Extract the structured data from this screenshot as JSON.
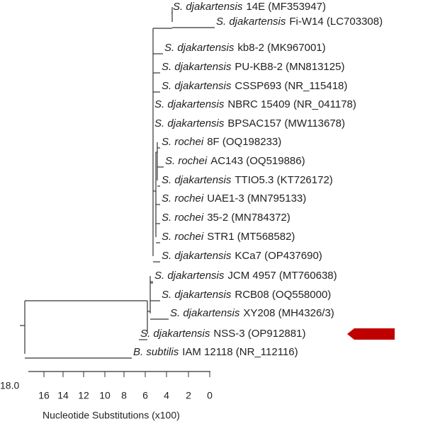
{
  "tree": {
    "leaves": [
      {
        "species": "S. djakartensis",
        "label": "14E (MF353947)"
      },
      {
        "species": "S. djakartensis",
        "label": "Fi-W14 (LC703308)"
      },
      {
        "species": "S. djakartensis",
        "label": "kb8-2 (MK967001)"
      },
      {
        "species": "S. djakartensis",
        "label": "PU-KB8-2 (MN813125)"
      },
      {
        "species": "S. djakartensis",
        "label": "CSSP693 (NR_115418)"
      },
      {
        "species": "S. djakartensis",
        "label": "NBRC 15409 (NR_041178)"
      },
      {
        "species": "S. djakartensis",
        "label": "BPSAC157 (MW113678)"
      },
      {
        "species": "S. rochei",
        "label": "8F (OQ198233)"
      },
      {
        "species": "S. rochei",
        "label": "AC143 (OQ519886)"
      },
      {
        "species": "S. djakartensis",
        "label": "TTIO5.3 (KT726172)"
      },
      {
        "species": "S. rochei",
        "label": "UAE1-3 (MN795133)"
      },
      {
        "species": "S. rochei",
        "label": "35-2 (MN784372)"
      },
      {
        "species": "S. rochei",
        "label": "STR1 (MT568582)"
      },
      {
        "species": "S. djakartensis",
        "label": "KCa7 (OP437690)"
      },
      {
        "species": "S. djakartensis",
        "label": "JCM 4957 (MT760638)"
      },
      {
        "species": "S. djakartensis",
        "label": "RCB08 (OQ558000)"
      },
      {
        "species": "S. djakartensis",
        "label": "XY208 (MH4326/3)"
      },
      {
        "species": "S. djakartensis",
        "label": "NSS-3 (OP912881)"
      },
      {
        "species": "B. subtilis",
        "label": "IAM 12118 (NR_112116)"
      }
    ],
    "scale_label": "18.0",
    "axis_ticks": [
      "16",
      "14",
      "12",
      "10",
      "8",
      "6",
      "4",
      "2",
      "0"
    ],
    "axis_title": "Nucleotide Substitutions (x100)"
  }
}
